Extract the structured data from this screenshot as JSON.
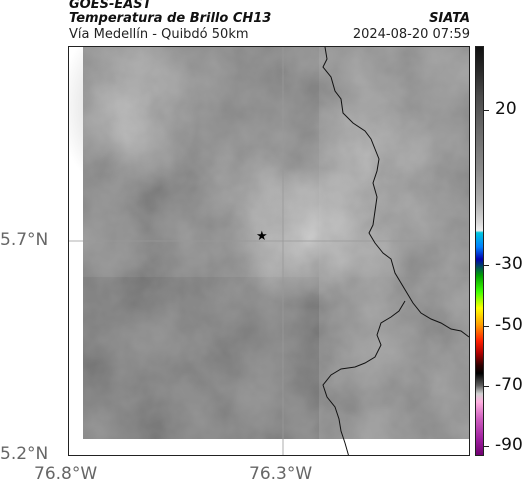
{
  "header": {
    "agency": "GOES-EAST",
    "product": "Temperatura de Brillo CH13",
    "region": "Vía Medellín - Quibdó 50km",
    "organization": "SIATA",
    "datetime": "2024-08-20 07:59"
  },
  "axes": {
    "lat_labels": [
      "5.7°N",
      "5.2°N"
    ],
    "lon_labels": [
      "76.8°W",
      "76.3°W"
    ]
  },
  "colorbar": {
    "labels": [
      "20",
      "-30",
      "-50",
      "-70",
      "-90"
    ]
  },
  "marker": {
    "icon": "star-icon"
  }
}
